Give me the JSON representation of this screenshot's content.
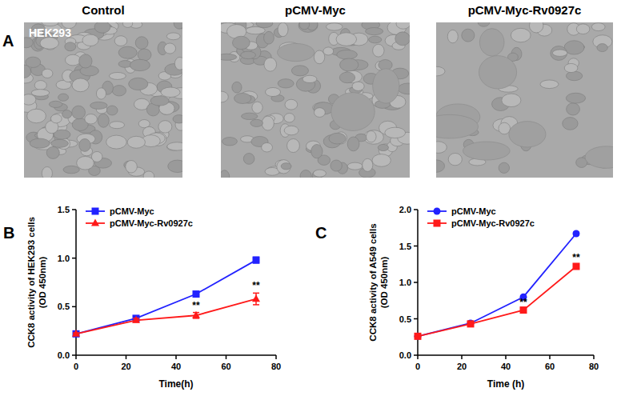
{
  "panel_a": {
    "panel_label": "A",
    "titles": [
      "Control",
      "pCMV-Myc",
      "pCMV-Myc-Rv0927c"
    ],
    "inset_label": "HEK293"
  },
  "chart_data": [
    {
      "type": "line",
      "panel_label": "B",
      "x_label": "Time(h)",
      "y_label": [
        "CCK8 activity of HEK293 cells",
        "(OD 450nm)"
      ],
      "x": [
        0,
        24,
        48,
        72
      ],
      "xlim": [
        0,
        80
      ],
      "xticks": [
        0,
        20,
        40,
        60,
        80
      ],
      "ylim": [
        0,
        1.5
      ],
      "yticks": [
        {
          "value": 0,
          "label": "0.0"
        },
        {
          "value": 0.5,
          "label": "0.5"
        },
        {
          "value": 1,
          "label": "1.0"
        },
        {
          "value": 1.5,
          "label": "1.5"
        }
      ],
      "legend": "upper left",
      "series": [
        {
          "name": "pCMV-Myc",
          "color": "#2222ff",
          "marker": "square",
          "values": [
            0.22,
            0.38,
            0.63,
            0.98
          ],
          "errors": [
            0.01,
            0.01,
            0.01,
            0.03
          ]
        },
        {
          "name": "pCMV-Myc-Rv0927c",
          "color": "#ff1a1a",
          "marker": "triangle",
          "values": [
            0.22,
            0.36,
            0.41,
            0.58
          ],
          "errors": [
            0.01,
            0.02,
            0.03,
            0.06
          ]
        }
      ],
      "annotations": [
        {
          "x": 48,
          "text": "**"
        },
        {
          "x": 72,
          "text": "**"
        }
      ]
    },
    {
      "type": "line",
      "panel_label": "C",
      "x_label": "Time (h)",
      "y_label": [
        "CCK8 activity of A549 cells",
        "(OD 450nm)"
      ],
      "x": [
        0,
        24,
        48,
        72
      ],
      "xlim": [
        0,
        80
      ],
      "xticks": [
        0,
        20,
        40,
        60,
        80
      ],
      "ylim": [
        0,
        2
      ],
      "yticks": [
        {
          "value": 0,
          "label": "0.0"
        },
        {
          "value": 0.5,
          "label": "0.5"
        },
        {
          "value": 1,
          "label": "1.0"
        },
        {
          "value": 1.5,
          "label": "1.5"
        },
        {
          "value": 2,
          "label": "2.0"
        }
      ],
      "legend": "upper left",
      "series": [
        {
          "name": "pCMV-Myc",
          "color": "#2222ff",
          "marker": "circle",
          "values": [
            0.26,
            0.44,
            0.8,
            1.67
          ],
          "errors": [
            0.01,
            0.01,
            0.01,
            0.02
          ]
        },
        {
          "name": "pCMV-Myc-Rv0927c",
          "color": "#ff1a1a",
          "marker": "square",
          "values": [
            0.26,
            0.43,
            0.62,
            1.22
          ],
          "errors": [
            0.01,
            0.01,
            0.01,
            0.02
          ]
        }
      ],
      "annotations": [
        {
          "x": 48,
          "text": "**"
        },
        {
          "x": 72,
          "text": "**"
        }
      ]
    }
  ]
}
